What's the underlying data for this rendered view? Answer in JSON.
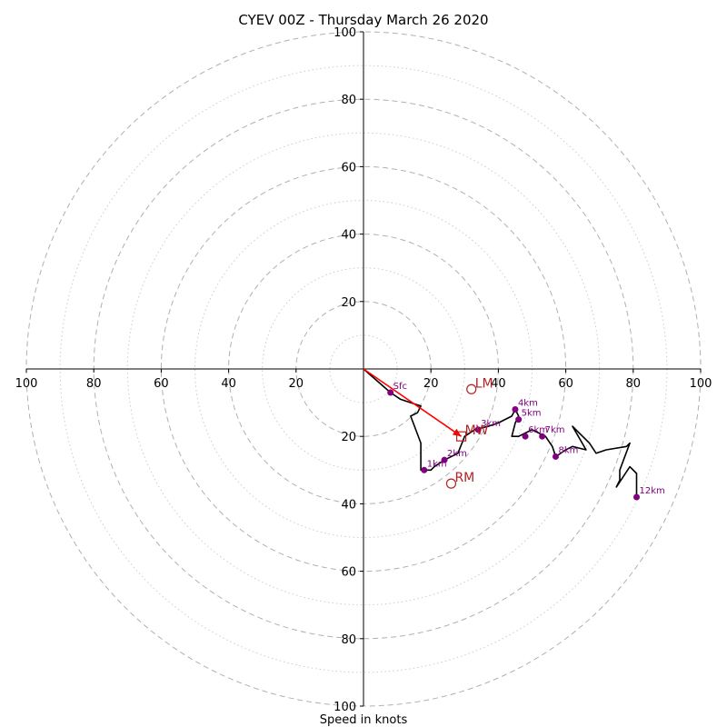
{
  "chart_data": {
    "type": "hodograph",
    "title": "CYEV 00Z - Thursday March 26 2020",
    "xlabel": "Speed in knots",
    "axis_range": [
      -100,
      100
    ],
    "rings_major": [
      20,
      40,
      60,
      80,
      100
    ],
    "rings_minor": [
      10,
      30,
      50,
      70,
      90
    ],
    "ticks": {
      "x_left": [
        "100",
        "80",
        "60",
        "40",
        "20"
      ],
      "x_right": [
        "20",
        "40",
        "60",
        "80",
        "100"
      ],
      "y_top": [
        "100",
        "80",
        "60",
        "40",
        "20"
      ],
      "y_bottom": [
        "20",
        "40",
        "60",
        "80",
        "100"
      ]
    },
    "trace": [
      [
        0,
        0
      ],
      [
        8,
        -7
      ],
      [
        11,
        -9
      ],
      [
        14,
        -10
      ],
      [
        17,
        -11
      ],
      [
        16,
        -13
      ],
      [
        14,
        -14
      ],
      [
        17,
        -22
      ],
      [
        17,
        -24
      ],
      [
        17,
        -30
      ],
      [
        20,
        -30
      ],
      [
        21,
        -29
      ],
      [
        24,
        -27
      ],
      [
        28,
        -25
      ],
      [
        30,
        -20
      ],
      [
        33,
        -18
      ],
      [
        37,
        -17
      ],
      [
        40,
        -16
      ],
      [
        44,
        -14
      ],
      [
        45,
        -12
      ],
      [
        46,
        -14
      ],
      [
        45,
        -16
      ],
      [
        44,
        -20
      ],
      [
        46,
        -20
      ],
      [
        48,
        -19
      ],
      [
        50,
        -18
      ],
      [
        52,
        -19
      ],
      [
        54,
        -20
      ],
      [
        56,
        -23
      ],
      [
        57,
        -26
      ],
      [
        60,
        -24
      ],
      [
        62,
        -23
      ],
      [
        66,
        -24
      ],
      [
        62,
        -17
      ],
      [
        67,
        -22
      ],
      [
        69,
        -25
      ],
      [
        72,
        -24
      ],
      [
        78,
        -23
      ],
      [
        79,
        -22
      ],
      [
        76,
        -30
      ],
      [
        76,
        -33
      ],
      [
        75,
        -35
      ],
      [
        79,
        -29
      ],
      [
        81,
        -31
      ],
      [
        81,
        -38
      ]
    ],
    "height_markers": [
      {
        "label": "Sfc",
        "u": 8,
        "v": -7
      },
      {
        "label": "1km",
        "u": 18,
        "v": -30
      },
      {
        "label": "2km",
        "u": 24,
        "v": -27
      },
      {
        "label": "3km",
        "u": 34,
        "v": -18
      },
      {
        "label": "4km",
        "u": 45,
        "v": -12
      },
      {
        "label": "5km",
        "u": 46,
        "v": -15
      },
      {
        "label": "6km",
        "u": 48,
        "v": -20
      },
      {
        "label": "7km",
        "u": 53,
        "v": -20
      },
      {
        "label": "8km",
        "u": 57,
        "v": -26
      },
      {
        "label": "12km",
        "u": 81,
        "v": -38
      }
    ],
    "motions": [
      {
        "label": "LM",
        "u": 32,
        "v": -6,
        "marker": "circle"
      },
      {
        "label": "MW",
        "u": 29,
        "v": -20,
        "marker": "square"
      },
      {
        "label": "RM",
        "u": 26,
        "v": -34,
        "marker": "circle"
      }
    ],
    "shear_vector": {
      "from": [
        0,
        0
      ],
      "to": [
        29,
        -20
      ]
    },
    "colors": {
      "trace": "#000000",
      "height_marker": "#800080",
      "motion": "#b22222",
      "shear_vector": "#ff0000",
      "grid": "#b0b0b0",
      "axes": "#000000"
    }
  }
}
